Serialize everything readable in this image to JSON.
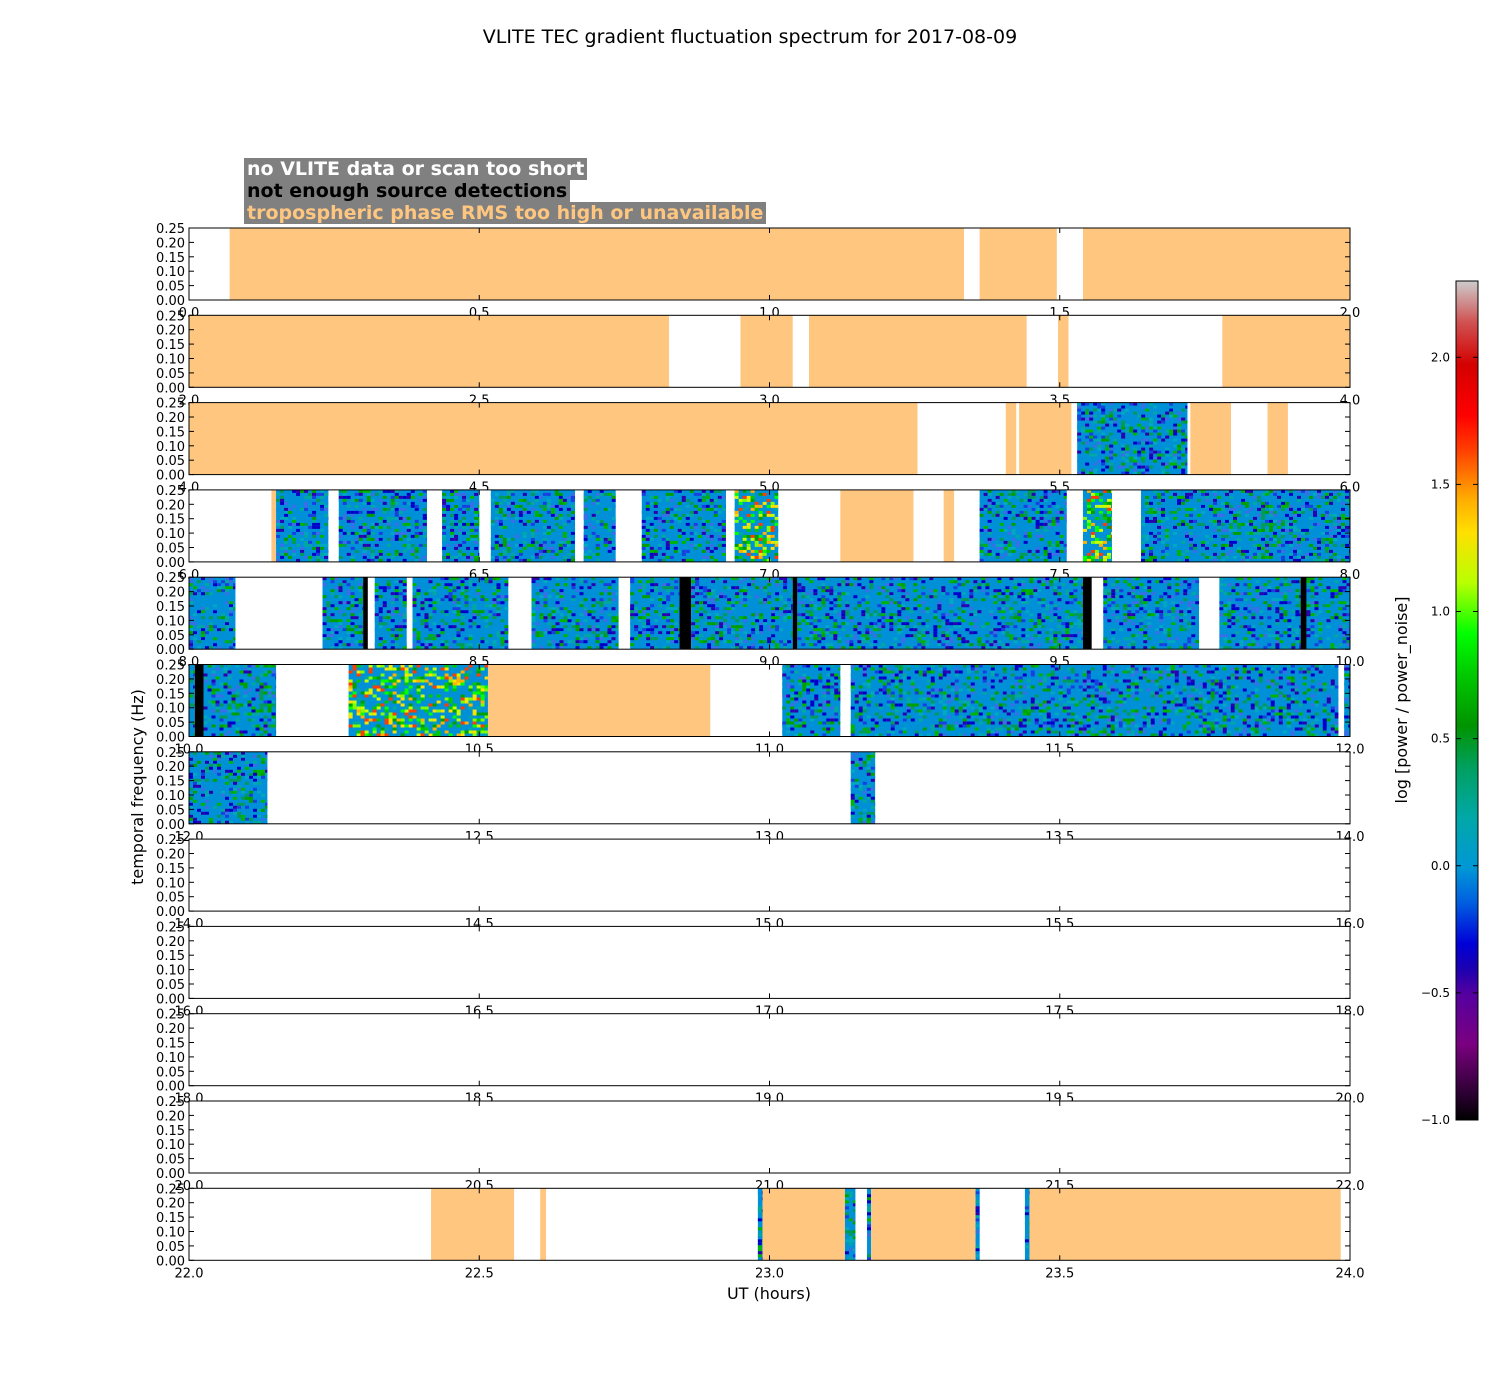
{
  "chart_data": {
    "type": "heatmap",
    "title": "VLITE TEC gradient fluctuation spectrum for 2017-08-09",
    "xlabel": "UT (hours)",
    "ylabel": "temporal frequency (Hz)",
    "ylim": [
      0,
      0.25
    ],
    "y_ticks": [
      "0.00",
      "0.05",
      "0.10",
      "0.15",
      "0.20",
      "0.25"
    ],
    "legend": [
      {
        "label": "no VLITE data or scan too short",
        "color": "#ffffff"
      },
      {
        "label": "not enough source detections",
        "color": "#000000"
      },
      {
        "label": "tropospheric phase RMS too high or unavailable",
        "color": "#ffc680"
      }
    ],
    "colorbar": {
      "label": "log [power / power_noise]",
      "range": [
        -1.0,
        2.3
      ],
      "ticks": [
        "−1.0",
        "−0.5",
        "0.0",
        "0.5",
        "1.0",
        "1.5",
        "2.0"
      ],
      "tick_values": [
        -1.0,
        -0.5,
        0.0,
        0.5,
        1.0,
        1.5,
        2.0
      ]
    },
    "panels": [
      {
        "x_range": [
          0,
          2
        ],
        "x_ticks": [
          "0.0",
          "0.5",
          "1.0",
          "1.5",
          "2.0"
        ],
        "segments": [
          [
            0.07,
            1.335,
            "tropo"
          ],
          [
            1.362,
            1.495,
            "tropo"
          ],
          [
            1.54,
            2.0,
            "tropo"
          ]
        ]
      },
      {
        "x_range": [
          2,
          4
        ],
        "x_ticks": [
          "2.0",
          "2.5",
          "3.0",
          "3.5",
          "4.0"
        ],
        "segments": [
          [
            2.0,
            2.827,
            "tropo"
          ],
          [
            2.95,
            3.04,
            "tropo"
          ],
          [
            3.068,
            3.443,
            "tropo"
          ],
          [
            3.497,
            3.515,
            "tropo"
          ],
          [
            3.78,
            4.0,
            "tropo"
          ]
        ]
      },
      {
        "x_range": [
          4,
          6
        ],
        "x_ticks": [
          "4.0",
          "4.5",
          "5.0",
          "5.5",
          "6.0"
        ],
        "segments": [
          [
            4.0,
            5.255,
            "tropo"
          ],
          [
            5.407,
            5.425,
            "tropo"
          ],
          [
            5.43,
            5.52,
            "tropo"
          ],
          [
            5.53,
            5.72,
            "data"
          ],
          [
            5.725,
            5.795,
            "tropo"
          ],
          [
            5.858,
            5.893,
            "tropo"
          ]
        ]
      },
      {
        "x_range": [
          6,
          8
        ],
        "x_ticks": [
          "6.0",
          "6.5",
          "7.0",
          "7.5",
          "8.0"
        ],
        "segments": [
          [
            6.142,
            6.15,
            "tropo"
          ],
          [
            6.15,
            6.24,
            "data"
          ],
          [
            6.258,
            6.41,
            "data"
          ],
          [
            6.436,
            6.5,
            "data"
          ],
          [
            6.52,
            6.665,
            "data"
          ],
          [
            6.68,
            6.735,
            "data"
          ],
          [
            6.78,
            6.925,
            "data"
          ],
          [
            6.94,
            7.015,
            "hot"
          ],
          [
            7.122,
            7.248,
            "tropo"
          ],
          [
            7.3,
            7.318,
            "tropo"
          ],
          [
            7.362,
            7.512,
            "data"
          ],
          [
            7.54,
            7.59,
            "hot"
          ],
          [
            7.64,
            8.0,
            "data"
          ]
        ]
      },
      {
        "x_range": [
          8,
          10
        ],
        "x_ticks": [
          "8.0",
          "8.5",
          "9.0",
          "9.5",
          "10.0"
        ],
        "segments": [
          [
            8.0,
            8.08,
            "data"
          ],
          [
            8.23,
            8.3,
            "data"
          ],
          [
            8.3,
            8.308,
            "black"
          ],
          [
            8.32,
            8.375,
            "data"
          ],
          [
            8.385,
            8.55,
            "data"
          ],
          [
            8.59,
            8.74,
            "data"
          ],
          [
            8.76,
            8.845,
            "data"
          ],
          [
            8.845,
            8.865,
            "black"
          ],
          [
            8.865,
            9.04,
            "data"
          ],
          [
            9.04,
            9.048,
            "black"
          ],
          [
            9.048,
            9.54,
            "data"
          ],
          [
            9.54,
            9.555,
            "black"
          ],
          [
            9.575,
            9.74,
            "data"
          ],
          [
            9.775,
            9.915,
            "data"
          ],
          [
            9.915,
            9.925,
            "black"
          ],
          [
            9.925,
            10.0,
            "data"
          ]
        ]
      },
      {
        "x_range": [
          10,
          12
        ],
        "x_ticks": [
          "10.0",
          "10.5",
          "11.0",
          "11.5",
          "12.0"
        ],
        "segments": [
          [
            10.0,
            10.01,
            "data"
          ],
          [
            10.01,
            10.025,
            "black"
          ],
          [
            10.025,
            10.15,
            "data"
          ],
          [
            10.275,
            10.515,
            "hot"
          ],
          [
            10.515,
            10.898,
            "tropo"
          ],
          [
            11.022,
            11.122,
            "data"
          ],
          [
            11.14,
            11.98,
            "data"
          ],
          [
            11.99,
            12.0,
            "data"
          ]
        ]
      },
      {
        "x_range": [
          12,
          14
        ],
        "x_ticks": [
          "12.0",
          "12.5",
          "13.0",
          "13.5",
          "14.0"
        ],
        "segments": [
          [
            12.0,
            12.135,
            "data"
          ],
          [
            13.14,
            13.182,
            "data"
          ]
        ]
      },
      {
        "x_range": [
          14,
          16
        ],
        "x_ticks": [
          "14.0",
          "14.5",
          "15.0",
          "15.5",
          "16.0"
        ],
        "segments": []
      },
      {
        "x_range": [
          16,
          18
        ],
        "x_ticks": [
          "16.0",
          "16.5",
          "17.0",
          "17.5",
          "18.0"
        ],
        "segments": []
      },
      {
        "x_range": [
          18,
          20
        ],
        "x_ticks": [
          "18.0",
          "18.5",
          "19.0",
          "19.5",
          "20.0"
        ],
        "segments": []
      },
      {
        "x_range": [
          20,
          22
        ],
        "x_ticks": [
          "20.0",
          "20.5",
          "21.0",
          "21.5",
          "22.0"
        ],
        "segments": []
      },
      {
        "x_range": [
          22,
          24
        ],
        "x_ticks": [
          "22.0",
          "22.5",
          "23.0",
          "23.5",
          "24.0"
        ],
        "segments": [
          [
            22.417,
            22.56,
            "tropo"
          ],
          [
            22.605,
            22.615,
            "tropo"
          ],
          [
            22.98,
            22.988,
            "data"
          ],
          [
            22.988,
            23.13,
            "tropo"
          ],
          [
            23.13,
            23.148,
            "data"
          ],
          [
            23.168,
            23.175,
            "data"
          ],
          [
            23.175,
            23.355,
            "tropo"
          ],
          [
            23.355,
            23.362,
            "data"
          ],
          [
            23.44,
            23.448,
            "data"
          ],
          [
            23.448,
            23.984,
            "tropo"
          ]
        ]
      }
    ]
  }
}
